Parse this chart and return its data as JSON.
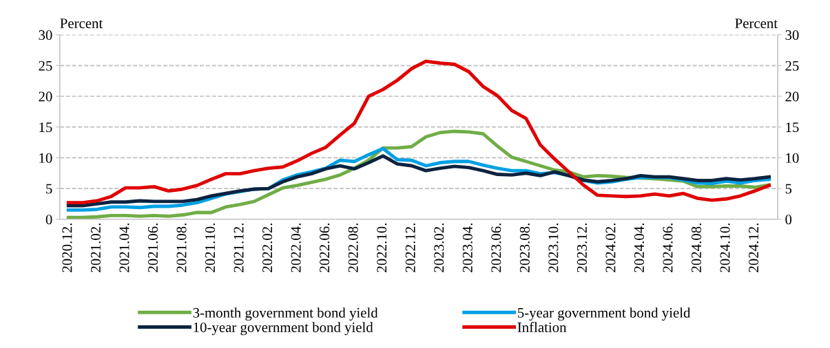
{
  "chart_data": {
    "type": "line",
    "ylabel": "Percent",
    "y2label": "Percent",
    "categories": [
      "2020.12.",
      null,
      "2021.02.",
      null,
      "2021.04.",
      null,
      "2021.06.",
      null,
      "2021.08.",
      null,
      "2021.10.",
      null,
      "2021.12.",
      null,
      "2022.02.",
      null,
      "2022.04.",
      null,
      "2022.06.",
      null,
      "2022.08.",
      null,
      "2022.10.",
      null,
      "2022.12.",
      null,
      "2023.02.",
      null,
      "2023.04.",
      null,
      "2023.06.",
      null,
      "2023.08.",
      null,
      "2023.10.",
      null,
      "2023.12.",
      null,
      "2024.02.",
      null,
      "2024.04.",
      null,
      "2024.06.",
      null,
      "2024.08.",
      null,
      "2024.10.",
      null,
      "2024.12.",
      null
    ],
    "series": [
      {
        "name": "3-month government bond yield",
        "color": "#70ad47",
        "values": [
          0.3,
          0.3,
          0.4,
          0.6,
          0.6,
          0.5,
          0.6,
          0.5,
          0.7,
          1.1,
          1.1,
          2.0,
          2.4,
          2.9,
          4.0,
          5.1,
          5.5,
          6.0,
          6.5,
          7.2,
          8.3,
          9.6,
          11.6,
          11.6,
          11.8,
          13.4,
          14.1,
          14.3,
          14.2,
          13.9,
          11.9,
          10.1,
          9.4,
          8.7,
          8.0,
          7.7,
          6.9,
          7.1,
          7.0,
          6.8,
          6.7,
          6.6,
          6.4,
          6.2,
          5.3,
          5.3,
          5.4,
          5.4,
          5.2,
          5.6
        ]
      },
      {
        "name": "5-year government bond yield",
        "color": "#00a0e3",
        "values": [
          1.5,
          1.5,
          1.6,
          2.0,
          2.0,
          1.9,
          2.1,
          2.1,
          2.3,
          2.7,
          3.4,
          4.1,
          4.5,
          4.9,
          5.0,
          6.4,
          7.2,
          7.7,
          8.3,
          9.6,
          9.4,
          10.5,
          11.5,
          9.7,
          9.6,
          8.7,
          9.2,
          9.4,
          9.4,
          8.8,
          8.3,
          7.9,
          7.9,
          7.4,
          7.6,
          7.1,
          6.3,
          5.9,
          6.1,
          6.5,
          6.8,
          6.8,
          6.8,
          6.4,
          5.9,
          5.8,
          6.2,
          5.9,
          6.3,
          6.5
        ]
      },
      {
        "name": "10-year government bond yield",
        "color": "#0c2340",
        "values": [
          2.2,
          2.2,
          2.5,
          2.8,
          2.8,
          3.0,
          2.9,
          2.9,
          2.9,
          3.2,
          3.8,
          4.2,
          4.6,
          4.9,
          5.0,
          6.1,
          6.9,
          7.4,
          8.2,
          8.7,
          8.2,
          9.2,
          10.3,
          9.0,
          8.7,
          7.9,
          8.3,
          8.6,
          8.4,
          7.9,
          7.3,
          7.2,
          7.5,
          7.1,
          7.7,
          7.1,
          6.4,
          6.1,
          6.3,
          6.6,
          7.1,
          6.9,
          6.9,
          6.6,
          6.3,
          6.3,
          6.6,
          6.4,
          6.6,
          6.9
        ]
      },
      {
        "name": "Inflation",
        "color": "#e00000",
        "values": [
          2.7,
          2.7,
          3.0,
          3.7,
          5.1,
          5.1,
          5.3,
          4.6,
          4.9,
          5.5,
          6.5,
          7.4,
          7.4,
          7.9,
          8.3,
          8.5,
          9.5,
          10.7,
          11.7,
          13.7,
          15.6,
          20.0,
          21.1,
          22.6,
          24.5,
          25.7,
          25.4,
          25.2,
          24.0,
          21.6,
          20.1,
          17.7,
          16.4,
          12.1,
          9.8,
          7.7,
          5.6,
          3.9,
          3.8,
          3.7,
          3.8,
          4.1,
          3.8,
          4.2,
          3.4,
          3.1,
          3.3,
          3.8,
          4.6,
          5.5
        ]
      }
    ],
    "ylim": [
      0,
      30
    ],
    "yticks": [
      0,
      5,
      10,
      15,
      20,
      25,
      30
    ],
    "y2lim": [
      0,
      30
    ],
    "y2ticks": [
      0,
      5,
      10,
      15,
      20,
      25,
      30
    ],
    "grid": "y",
    "legend": "bottom",
    "marker": "none",
    "line_style": "solid"
  }
}
